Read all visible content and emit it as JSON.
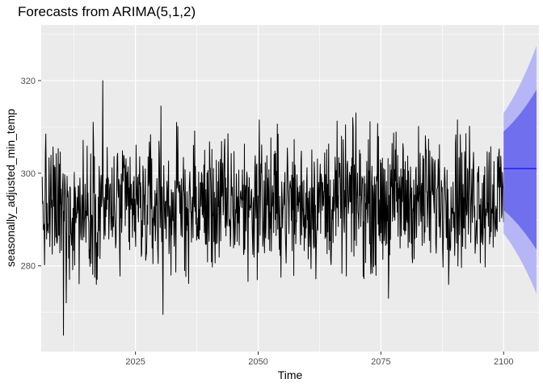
{
  "chart_data": {
    "type": "line",
    "title": "Forecasts from ARIMA(5,1,2)",
    "xlabel": "Time",
    "ylabel": "seasonally_adjusted_min_temp",
    "xlim": [
      2005.8,
      2107.2
    ],
    "ylim": [
      261.5,
      332
    ],
    "x_ticks": [
      2025,
      2050,
      2075,
      2100
    ],
    "x_tick_labels": [
      "2025",
      "2050",
      "2075",
      "2100"
    ],
    "y_ticks": [
      280,
      300,
      320
    ],
    "y_tick_labels": [
      "280",
      "300",
      "320"
    ],
    "grid": true,
    "legend": "none",
    "observed": {
      "x_start": 2006,
      "x_end": 2100,
      "level_start": 292,
      "level_end": 295,
      "typical_range": [
        278,
        311
      ],
      "min": 265,
      "max": 320,
      "color": "#000000"
    },
    "forecast": {
      "x_start": 2100,
      "x_end": 2106.7,
      "mean": 301,
      "mean_color": "#0000ff",
      "interval_80": {
        "start": [
          292,
          309
        ],
        "end": [
          283.5,
          318
        ]
      },
      "interval_95": {
        "start": [
          287,
          313
        ],
        "end": [
          274,
          327.5
        ]
      },
      "color_80": "#7070ee",
      "color_95": "#b6b6f6"
    },
    "colors": {
      "panel_background": "#ebebeb",
      "grid_major": "#ffffff"
    }
  }
}
